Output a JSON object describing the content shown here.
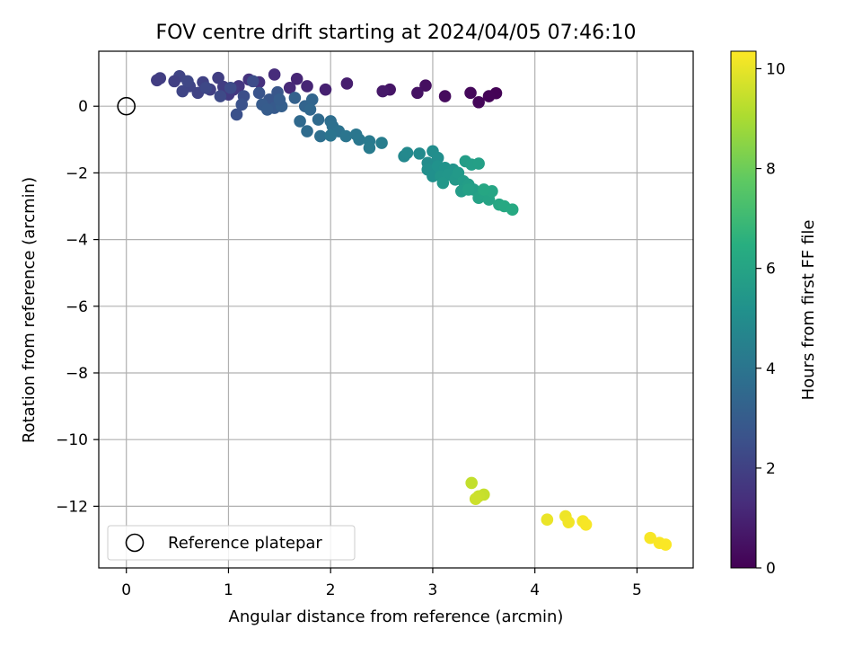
{
  "chart_data": {
    "type": "scatter",
    "title": "FOV centre drift starting at 2024/04/05 07:46:10",
    "xlabel": "Angular distance from reference (arcmin)",
    "ylabel": "Rotation from reference (arcmin)",
    "colorbar_label": "Hours from first FF file",
    "xlim": [
      -0.27,
      5.55
    ],
    "ylim": [
      -13.85,
      1.65
    ],
    "clim": [
      0,
      10.35
    ],
    "x_ticks": [
      0,
      1,
      2,
      3,
      4,
      5
    ],
    "y_ticks": [
      0,
      -2,
      -4,
      -6,
      -8,
      -10,
      -12
    ],
    "colorbar_ticks": [
      0,
      2,
      4,
      6,
      8,
      10
    ],
    "grid": true,
    "legend": {
      "location": "lower-left",
      "entries": [
        "Reference platepar"
      ]
    },
    "reference_point": {
      "x": 0,
      "y": 0,
      "label": "Reference platepar"
    },
    "colormap": "viridis",
    "series": [
      {
        "columns": [
          "x",
          "y",
          "hours"
        ],
        "points": [
          [
            3.62,
            0.39,
            0.05
          ],
          [
            3.55,
            0.3,
            0.1
          ],
          [
            3.45,
            0.12,
            0.15
          ],
          [
            3.37,
            0.4,
            0.2
          ],
          [
            3.12,
            0.3,
            0.3
          ],
          [
            2.93,
            0.62,
            0.4
          ],
          [
            2.85,
            0.4,
            0.5
          ],
          [
            2.58,
            0.5,
            0.6
          ],
          [
            2.51,
            0.45,
            0.7
          ],
          [
            2.16,
            0.68,
            0.85
          ],
          [
            1.95,
            0.5,
            0.95
          ],
          [
            1.77,
            0.6,
            1.05
          ],
          [
            1.67,
            0.82,
            1.1
          ],
          [
            1.6,
            0.55,
            1.2
          ],
          [
            1.45,
            0.95,
            1.3
          ],
          [
            1.3,
            0.72,
            1.45
          ],
          [
            1.2,
            0.8,
            1.5
          ],
          [
            1.1,
            0.6,
            1.6
          ],
          [
            1.05,
            0.5,
            1.7
          ],
          [
            1.0,
            0.35,
            1.75
          ],
          [
            0.95,
            0.58,
            1.85
          ],
          [
            0.9,
            0.85,
            1.9
          ],
          [
            0.82,
            0.5,
            1.95
          ],
          [
            0.75,
            0.72,
            2.0
          ],
          [
            0.7,
            0.4,
            2.05
          ],
          [
            0.62,
            0.6,
            2.1
          ],
          [
            0.55,
            0.45,
            2.15
          ],
          [
            0.52,
            0.9,
            2.1
          ],
          [
            0.47,
            0.75,
            1.95
          ],
          [
            0.33,
            0.84,
            1.9
          ],
          [
            0.3,
            0.78,
            1.85
          ],
          [
            0.6,
            0.75,
            2.2
          ],
          [
            0.78,
            0.55,
            2.25
          ],
          [
            0.92,
            0.3,
            2.3
          ],
          [
            1.02,
            0.55,
            2.35
          ],
          [
            1.15,
            0.3,
            2.45
          ],
          [
            1.24,
            0.75,
            2.4
          ],
          [
            1.08,
            -0.25,
            2.55
          ],
          [
            1.13,
            0.05,
            2.6
          ],
          [
            1.3,
            0.4,
            2.65
          ],
          [
            1.4,
            0.2,
            2.75
          ],
          [
            1.48,
            0.42,
            2.8
          ],
          [
            1.45,
            -0.05,
            2.9
          ],
          [
            1.33,
            0.05,
            2.95
          ],
          [
            1.38,
            -0.1,
            3.0
          ],
          [
            1.52,
            0.0,
            3.1
          ],
          [
            1.5,
            0.2,
            3.05
          ],
          [
            1.65,
            0.25,
            3.2
          ],
          [
            1.75,
            0.0,
            3.3
          ],
          [
            1.82,
            0.2,
            3.35
          ],
          [
            1.8,
            -0.1,
            3.45
          ],
          [
            1.7,
            -0.45,
            3.5
          ],
          [
            1.88,
            -0.4,
            3.55
          ],
          [
            1.77,
            -0.75,
            3.6
          ],
          [
            2.0,
            -0.45,
            3.7
          ],
          [
            1.9,
            -0.9,
            3.75
          ],
          [
            2.02,
            -0.6,
            3.8
          ],
          [
            2.08,
            -0.75,
            3.9
          ],
          [
            2.0,
            -0.88,
            3.95
          ],
          [
            2.15,
            -0.9,
            4.0
          ],
          [
            2.25,
            -0.85,
            4.05
          ],
          [
            2.28,
            -1.0,
            4.1
          ],
          [
            2.38,
            -1.05,
            4.2
          ],
          [
            2.38,
            -1.25,
            4.25
          ],
          [
            2.5,
            -1.1,
            4.35
          ],
          [
            2.72,
            -1.5,
            4.8
          ],
          [
            2.75,
            -1.4,
            4.85
          ],
          [
            2.87,
            -1.42,
            4.9
          ],
          [
            2.95,
            -1.7,
            4.95
          ],
          [
            3.0,
            -1.35,
            5.0
          ],
          [
            3.05,
            -1.55,
            5.05
          ],
          [
            2.95,
            -1.9,
            5.1
          ],
          [
            3.0,
            -2.1,
            5.15
          ],
          [
            3.05,
            -1.8,
            5.2
          ],
          [
            3.12,
            -1.85,
            5.25
          ],
          [
            3.2,
            -1.9,
            5.3
          ],
          [
            3.08,
            -2.1,
            5.35
          ],
          [
            3.15,
            -2.05,
            5.4
          ],
          [
            3.1,
            -2.3,
            5.45
          ],
          [
            3.22,
            -2.2,
            5.5
          ],
          [
            3.25,
            -2.0,
            5.55
          ],
          [
            3.3,
            -2.25,
            5.6
          ],
          [
            3.28,
            -2.55,
            5.65
          ],
          [
            3.35,
            -2.35,
            5.7
          ],
          [
            3.4,
            -2.5,
            5.75
          ],
          [
            3.32,
            -1.65,
            5.7
          ],
          [
            3.38,
            -1.75,
            5.75
          ],
          [
            3.45,
            -1.72,
            5.8
          ],
          [
            3.35,
            -2.5,
            5.85
          ],
          [
            3.45,
            -2.75,
            5.9
          ],
          [
            3.5,
            -2.6,
            5.95
          ],
          [
            3.55,
            -2.8,
            6.0
          ],
          [
            3.58,
            -2.55,
            6.05
          ],
          [
            3.5,
            -2.5,
            6.1
          ],
          [
            3.65,
            -2.95,
            6.15
          ],
          [
            3.7,
            -3.0,
            6.2
          ],
          [
            3.78,
            -3.1,
            6.25
          ],
          [
            3.38,
            -11.3,
            9.4
          ],
          [
            3.5,
            -11.65,
            9.45
          ],
          [
            3.45,
            -11.7,
            9.5
          ],
          [
            3.42,
            -11.78,
            9.55
          ],
          [
            4.12,
            -12.4,
            10.05
          ],
          [
            4.3,
            -12.3,
            10.1
          ],
          [
            4.33,
            -12.48,
            10.15
          ],
          [
            4.47,
            -12.45,
            10.2
          ],
          [
            4.5,
            -12.55,
            10.25
          ],
          [
            5.13,
            -12.95,
            10.25
          ],
          [
            5.22,
            -13.1,
            10.28
          ],
          [
            5.28,
            -13.15,
            10.3
          ]
        ]
      }
    ]
  }
}
